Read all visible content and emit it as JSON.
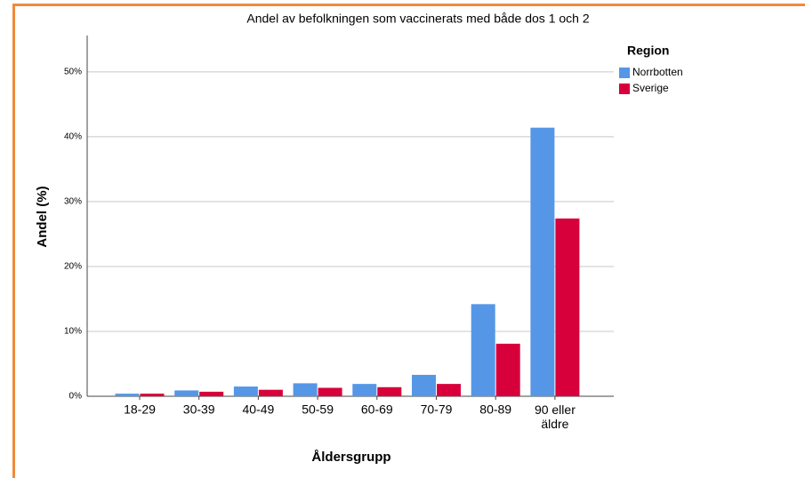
{
  "chart_data": {
    "type": "bar",
    "title": "Andel av befolkningen som vaccinerats med både dos 1 och 2",
    "x_label": "Åldersgrupp",
    "y_label": "Andel (%)",
    "legend_title": "Region",
    "categories": [
      "18-29",
      "30-39",
      "40-49",
      "50-59",
      "60-69",
      "70-79",
      "80-89",
      "90 eller äldre"
    ],
    "series": [
      {
        "name": "Norrbotten",
        "color": "#5597e6",
        "values": [
          0.4,
          0.9,
          1.5,
          2.0,
          1.9,
          3.3,
          14.2,
          41.4
        ]
      },
      {
        "name": "Sverige",
        "color": "#d7003a",
        "values": [
          0.4,
          0.7,
          1.0,
          1.3,
          1.4,
          1.9,
          8.1,
          27.4
        ]
      }
    ],
    "ylim": [
      0,
      55.6
    ],
    "yticks": [
      {
        "value": 0,
        "label": "0%"
      },
      {
        "value": 10,
        "label": "10%"
      },
      {
        "value": 20,
        "label": "20%"
      },
      {
        "value": 30,
        "label": "30%"
      },
      {
        "value": 40,
        "label": "40%"
      },
      {
        "value": 50,
        "label": "50%"
      }
    ],
    "grid": true,
    "legend_position": "right"
  }
}
